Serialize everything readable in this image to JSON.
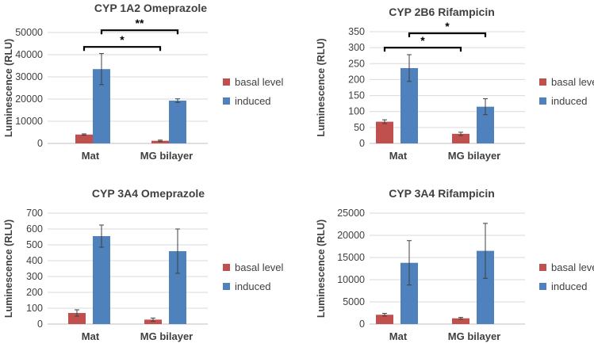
{
  "chart_data": [
    {
      "type": "bar",
      "title": "CYP 1A2 Omeprazole",
      "ylabel": "Luminescence (RLU)",
      "xlabel": "",
      "categories": [
        "Mat",
        "MG bilayer"
      ],
      "ylim": [
        0,
        50000
      ],
      "yticks": [
        0,
        10000,
        20000,
        30000,
        40000,
        50000
      ],
      "ytick_labels": [
        "0",
        "10000",
        "20000",
        "30000",
        "40000",
        "50000"
      ],
      "series": [
        {
          "name": "basal level",
          "values": [
            4000,
            1200
          ],
          "errors": [
            300,
            300
          ]
        },
        {
          "name": "induced",
          "values": [
            33500,
            19300
          ],
          "errors": [
            7000,
            800
          ]
        }
      ],
      "significance": [
        {
          "label": "*",
          "from": "Mat",
          "to": "MG bilayer",
          "y": 43500
        },
        {
          "label": "**",
          "from": "Mat",
          "to": "MG bilayer",
          "y": 51000
        }
      ],
      "grid": false,
      "legend_position": "right"
    },
    {
      "type": "bar",
      "title": "CYP 2B6 Rifampicin",
      "ylabel": "Luminescence (RLU)",
      "xlabel": "",
      "categories": [
        "Mat",
        "MG bilayer"
      ],
      "ylim": [
        0,
        350
      ],
      "yticks": [
        0,
        50,
        100,
        150,
        200,
        250,
        300,
        350
      ],
      "ytick_labels": [
        "0",
        "50",
        "100",
        "150",
        "200",
        "250",
        "300",
        "350"
      ],
      "series": [
        {
          "name": "basal level",
          "values": [
            68,
            30
          ],
          "errors": [
            6,
            5
          ]
        },
        {
          "name": "induced",
          "values": [
            236,
            115
          ],
          "errors": [
            42,
            25
          ]
        }
      ],
      "significance": [
        {
          "label": "*",
          "from": "Mat",
          "to": "MG bilayer",
          "y": 300
        },
        {
          "label": "*",
          "from": "Mat",
          "to": "MG bilayer",
          "y": 345
        }
      ],
      "grid": false,
      "legend_position": "right"
    },
    {
      "type": "bar",
      "title": "CYP 3A4 Omeprazole",
      "ylabel": "Luminescence (RLU)",
      "xlabel": "",
      "categories": [
        "Mat",
        "MG bilayer"
      ],
      "ylim": [
        0,
        700
      ],
      "yticks": [
        0,
        100,
        200,
        300,
        400,
        500,
        600,
        700
      ],
      "ytick_labels": [
        "0",
        "100",
        "200",
        "300",
        "400",
        "500",
        "600",
        "700"
      ],
      "series": [
        {
          "name": "basal level",
          "values": [
            70,
            28
          ],
          "errors": [
            20,
            10
          ]
        },
        {
          "name": "induced",
          "values": [
            555,
            460
          ],
          "errors": [
            70,
            140
          ]
        }
      ],
      "significance": [],
      "grid": false,
      "legend_position": "right"
    },
    {
      "type": "bar",
      "title": "CYP 3A4 Rifampicin",
      "ylabel": "Luminescence (RLU)",
      "xlabel": "",
      "categories": [
        "Mat",
        "MG bilayer"
      ],
      "ylim": [
        0,
        25000
      ],
      "yticks": [
        0,
        5000,
        10000,
        15000,
        20000,
        25000
      ],
      "ytick_labels": [
        "0",
        "5000",
        "10000",
        "15000",
        "20000",
        "25000"
      ],
      "series": [
        {
          "name": "basal level",
          "values": [
            2100,
            1300
          ],
          "errors": [
            300,
            200
          ]
        },
        {
          "name": "induced",
          "values": [
            13800,
            16500
          ],
          "errors": [
            5000,
            6200
          ]
        }
      ],
      "significance": [],
      "grid": false,
      "legend_position": "right"
    }
  ],
  "colors": {
    "basal": "#c0504d",
    "induced": "#4f81bd",
    "grid": "#d9d9d9",
    "axis": "#bfbfbf",
    "error": "#404040",
    "bracket": "#000000"
  }
}
